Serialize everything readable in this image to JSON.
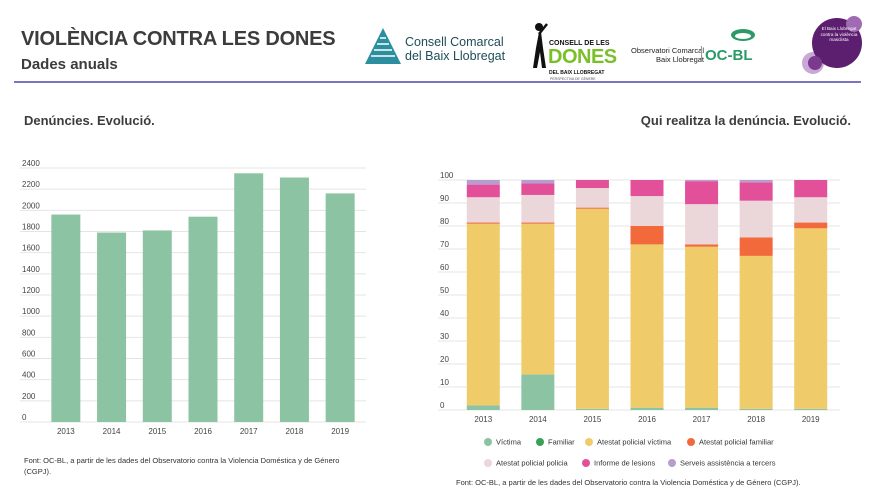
{
  "header": {
    "title": "VIOLÈNCIA CONTRA LES DONES",
    "subtitle": "Dades anuals"
  },
  "logos": {
    "consell_line1": "Consell Comarcal",
    "consell_line2": "del Baix Llobregat",
    "dones_line1": "CONSELL DE LES",
    "dones_line2": "DONES",
    "dones_line3": "DEL BAIX LLOBREGAT",
    "dones_line4": "PERSPECTIVA DE GÈNERE",
    "ocbl_small": "Observatori Comarcal\nBaix Llobregat",
    "ocbl_big": "OC-BL",
    "circle_text": "El Baix Llobregat contra la violència masclista"
  },
  "left_panel": {
    "title": "Denúncies. Evolució.",
    "source": "Font: OC-BL, a partir de les dades del Observatorio contra la Violencia Doméstica y de Género (CGPJ)."
  },
  "right_panel": {
    "title": "Qui realitza la denúncia. Evolució.",
    "source": "Font: OC-BL, a partir de les dades del Observatorio contra la Violencia Doméstica y de Género (CGPJ)."
  },
  "chart_data": [
    {
      "type": "bar",
      "title": "Denúncies. Evolució.",
      "categories": [
        "2013",
        "2014",
        "2015",
        "2016",
        "2017",
        "2018",
        "2019"
      ],
      "values": [
        1960,
        1790,
        1810,
        1940,
        2350,
        2310,
        2160
      ],
      "ylim": [
        0,
        2400
      ],
      "yticks": [
        0,
        200,
        400,
        600,
        800,
        1000,
        1200,
        1400,
        1600,
        1800,
        2000,
        2200,
        2400
      ],
      "color": "#8cc3a2",
      "xlabel": "",
      "ylabel": ""
    },
    {
      "type": "bar",
      "stacked": true,
      "title": "Qui realitza la denúncia. Evolució.",
      "categories": [
        "2013",
        "2014",
        "2015",
        "2016",
        "2017",
        "2018",
        "2019"
      ],
      "ylim": [
        0,
        100
      ],
      "yticks": [
        0,
        10,
        20,
        30,
        40,
        50,
        60,
        70,
        80,
        90,
        100
      ],
      "series": [
        {
          "name": "Víctima",
          "color": "#8cc3a2",
          "values": [
            2,
            15.5,
            0.5,
            1,
            1,
            0.5,
            0.5
          ]
        },
        {
          "name": "Familiar",
          "color": "#3aa15a",
          "values": [
            0,
            0,
            0,
            0,
            0,
            0,
            0
          ]
        },
        {
          "name": "Atestat policial víctima",
          "color": "#efcb6a",
          "values": [
            79,
            65.5,
            87,
            71,
            70,
            66.5,
            78.5
          ]
        },
        {
          "name": "Atestat policial familiar",
          "color": "#f26a3b",
          "values": [
            0.5,
            0.5,
            0.5,
            8,
            1,
            8,
            2.5
          ]
        },
        {
          "name": "Atestat policial policia",
          "color": "#ebd7da",
          "values": [
            11,
            12,
            8.5,
            13,
            17.5,
            16,
            11
          ]
        },
        {
          "name": "Informe de lesions",
          "color": "#e3509a",
          "values": [
            5.5,
            5,
            3.5,
            7,
            10,
            8,
            7.5
          ]
        },
        {
          "name": "Serveis assistència a tercers",
          "color": "#b79cd0",
          "values": [
            2,
            1.5,
            0,
            0,
            0.5,
            1,
            0
          ]
        }
      ]
    }
  ]
}
